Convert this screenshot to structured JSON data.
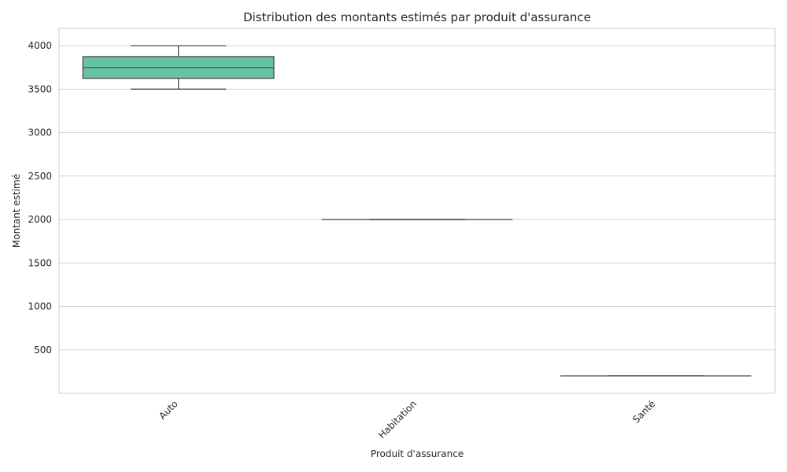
{
  "chart_data": {
    "type": "box",
    "title": "Distribution des montants estimés par produit d'assurance",
    "xlabel": "Produit d'assurance",
    "ylabel": "Montant estimé",
    "ylim": [
      0,
      4200
    ],
    "yticks": [
      500,
      1000,
      1500,
      2000,
      2500,
      3000,
      3500,
      4000
    ],
    "grid": true,
    "categories": [
      "Auto",
      "Habitation",
      "Santé"
    ],
    "boxes": [
      {
        "category": "Auto",
        "min": 3500,
        "q1": 3625,
        "median": 3750,
        "q3": 3875,
        "max": 4000
      },
      {
        "category": "Habitation",
        "min": 2000,
        "q1": 2000,
        "median": 2000,
        "q3": 2000,
        "max": 2000
      },
      {
        "category": "Santé",
        "min": 200,
        "q1": 200,
        "median": 200,
        "q3": 200,
        "max": 200
      }
    ],
    "colors": {
      "box_fill": "#66c2a5",
      "box_edge": "#4d4d4d",
      "grid": "#d4d4d4",
      "frame": "#cccccc",
      "text": "#262626"
    }
  }
}
